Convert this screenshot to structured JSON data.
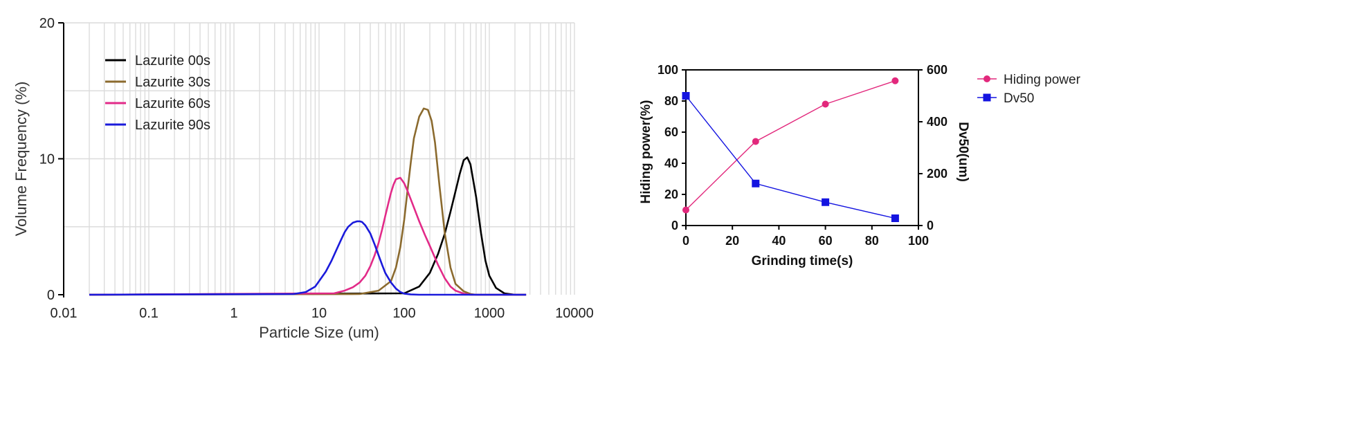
{
  "chart_data": [
    {
      "type": "line",
      "xscale": "log",
      "xlabel": "Particle Size (um)",
      "ylabel": "Volume Frequency (%)",
      "xlim": [
        0.01,
        10000
      ],
      "ylim": [
        0,
        20
      ],
      "x_ticks": [
        "0.01",
        "0.1",
        "1",
        "10",
        "100",
        "1000",
        "10000"
      ],
      "y_ticks": [
        "0",
        "10",
        "20"
      ],
      "grid": true,
      "legend_position": "top-left",
      "series": [
        {
          "name": "Lazurite 00s",
          "color": "#000000",
          "x": [
            0.02,
            100,
            150,
            200,
            250,
            300,
            350,
            400,
            450,
            500,
            550,
            600,
            700,
            800,
            900,
            1000,
            1200,
            1500,
            2000,
            2700
          ],
          "y": [
            0,
            0.1,
            0.6,
            1.6,
            3.0,
            4.5,
            6.1,
            7.6,
            8.9,
            9.9,
            10.1,
            9.6,
            7.2,
            4.5,
            2.5,
            1.4,
            0.5,
            0.1,
            0,
            0
          ]
        },
        {
          "name": "Lazurite 30s",
          "color": "#8B6A2E",
          "x": [
            0.02,
            30,
            50,
            70,
            80,
            90,
            100,
            110,
            120,
            130,
            150,
            170,
            190,
            210,
            230,
            260,
            300,
            350,
            400,
            500,
            600,
            700,
            2700
          ],
          "y": [
            0,
            0.05,
            0.3,
            1.0,
            2.0,
            3.5,
            5.5,
            7.8,
            9.8,
            11.5,
            13.1,
            13.7,
            13.6,
            12.8,
            11.2,
            8.0,
            4.5,
            2.0,
            0.8,
            0.25,
            0.05,
            0,
            0
          ]
        },
        {
          "name": "Lazurite 60s",
          "color": "#E22A88",
          "x": [
            0.02,
            15,
            20,
            25,
            30,
            35,
            40,
            45,
            50,
            55,
            60,
            65,
            70,
            75,
            80,
            90,
            100,
            110,
            125,
            150,
            175,
            200,
            250,
            300,
            350,
            400,
            500,
            600,
            2700
          ],
          "y": [
            0,
            0.1,
            0.3,
            0.55,
            0.9,
            1.4,
            2.1,
            2.9,
            3.8,
            4.8,
            5.8,
            6.7,
            7.5,
            8.1,
            8.5,
            8.6,
            8.2,
            7.6,
            6.7,
            5.4,
            4.4,
            3.6,
            2.2,
            1.2,
            0.6,
            0.3,
            0.08,
            0,
            0
          ]
        },
        {
          "name": "Lazurite 90s",
          "color": "#1A1ADB",
          "x": [
            0.02,
            5,
            7,
            9,
            10,
            12,
            14,
            16,
            18,
            20,
            22,
            25,
            28,
            30,
            32,
            35,
            40,
            45,
            50,
            55,
            60,
            70,
            80,
            90,
            100,
            120,
            150,
            2700
          ],
          "y": [
            0,
            0.05,
            0.2,
            0.6,
            1.0,
            1.7,
            2.5,
            3.3,
            4.0,
            4.6,
            5.0,
            5.3,
            5.4,
            5.4,
            5.35,
            5.1,
            4.5,
            3.7,
            2.9,
            2.2,
            1.6,
            0.9,
            0.45,
            0.2,
            0.08,
            0.02,
            0,
            0
          ]
        }
      ]
    },
    {
      "type": "line",
      "xlabel": "Grinding time(s)",
      "ylabel": "Hiding power(%)",
      "ylabel_right": "Dv50(um)",
      "xlim": [
        0,
        100
      ],
      "ylim": [
        0,
        100
      ],
      "ylim_right": [
        0,
        600
      ],
      "x_ticks": [
        "0",
        "20",
        "40",
        "60",
        "80",
        "100"
      ],
      "y_ticks": [
        "0",
        "20",
        "40",
        "60",
        "80",
        "100"
      ],
      "y_ticks_right": [
        "0",
        "200",
        "400",
        "600"
      ],
      "legend_position": "right",
      "series": [
        {
          "name": "Hiding power",
          "color": "#E2287C",
          "marker": "circle",
          "axis": "left",
          "x": [
            0,
            30,
            60,
            90
          ],
          "y": [
            10,
            54,
            78,
            93
          ]
        },
        {
          "name": "Dv50",
          "color": "#1414E0",
          "marker": "square",
          "axis": "right",
          "x": [
            0,
            30,
            60,
            90
          ],
          "y": [
            500,
            162,
            90,
            28
          ]
        }
      ]
    }
  ]
}
